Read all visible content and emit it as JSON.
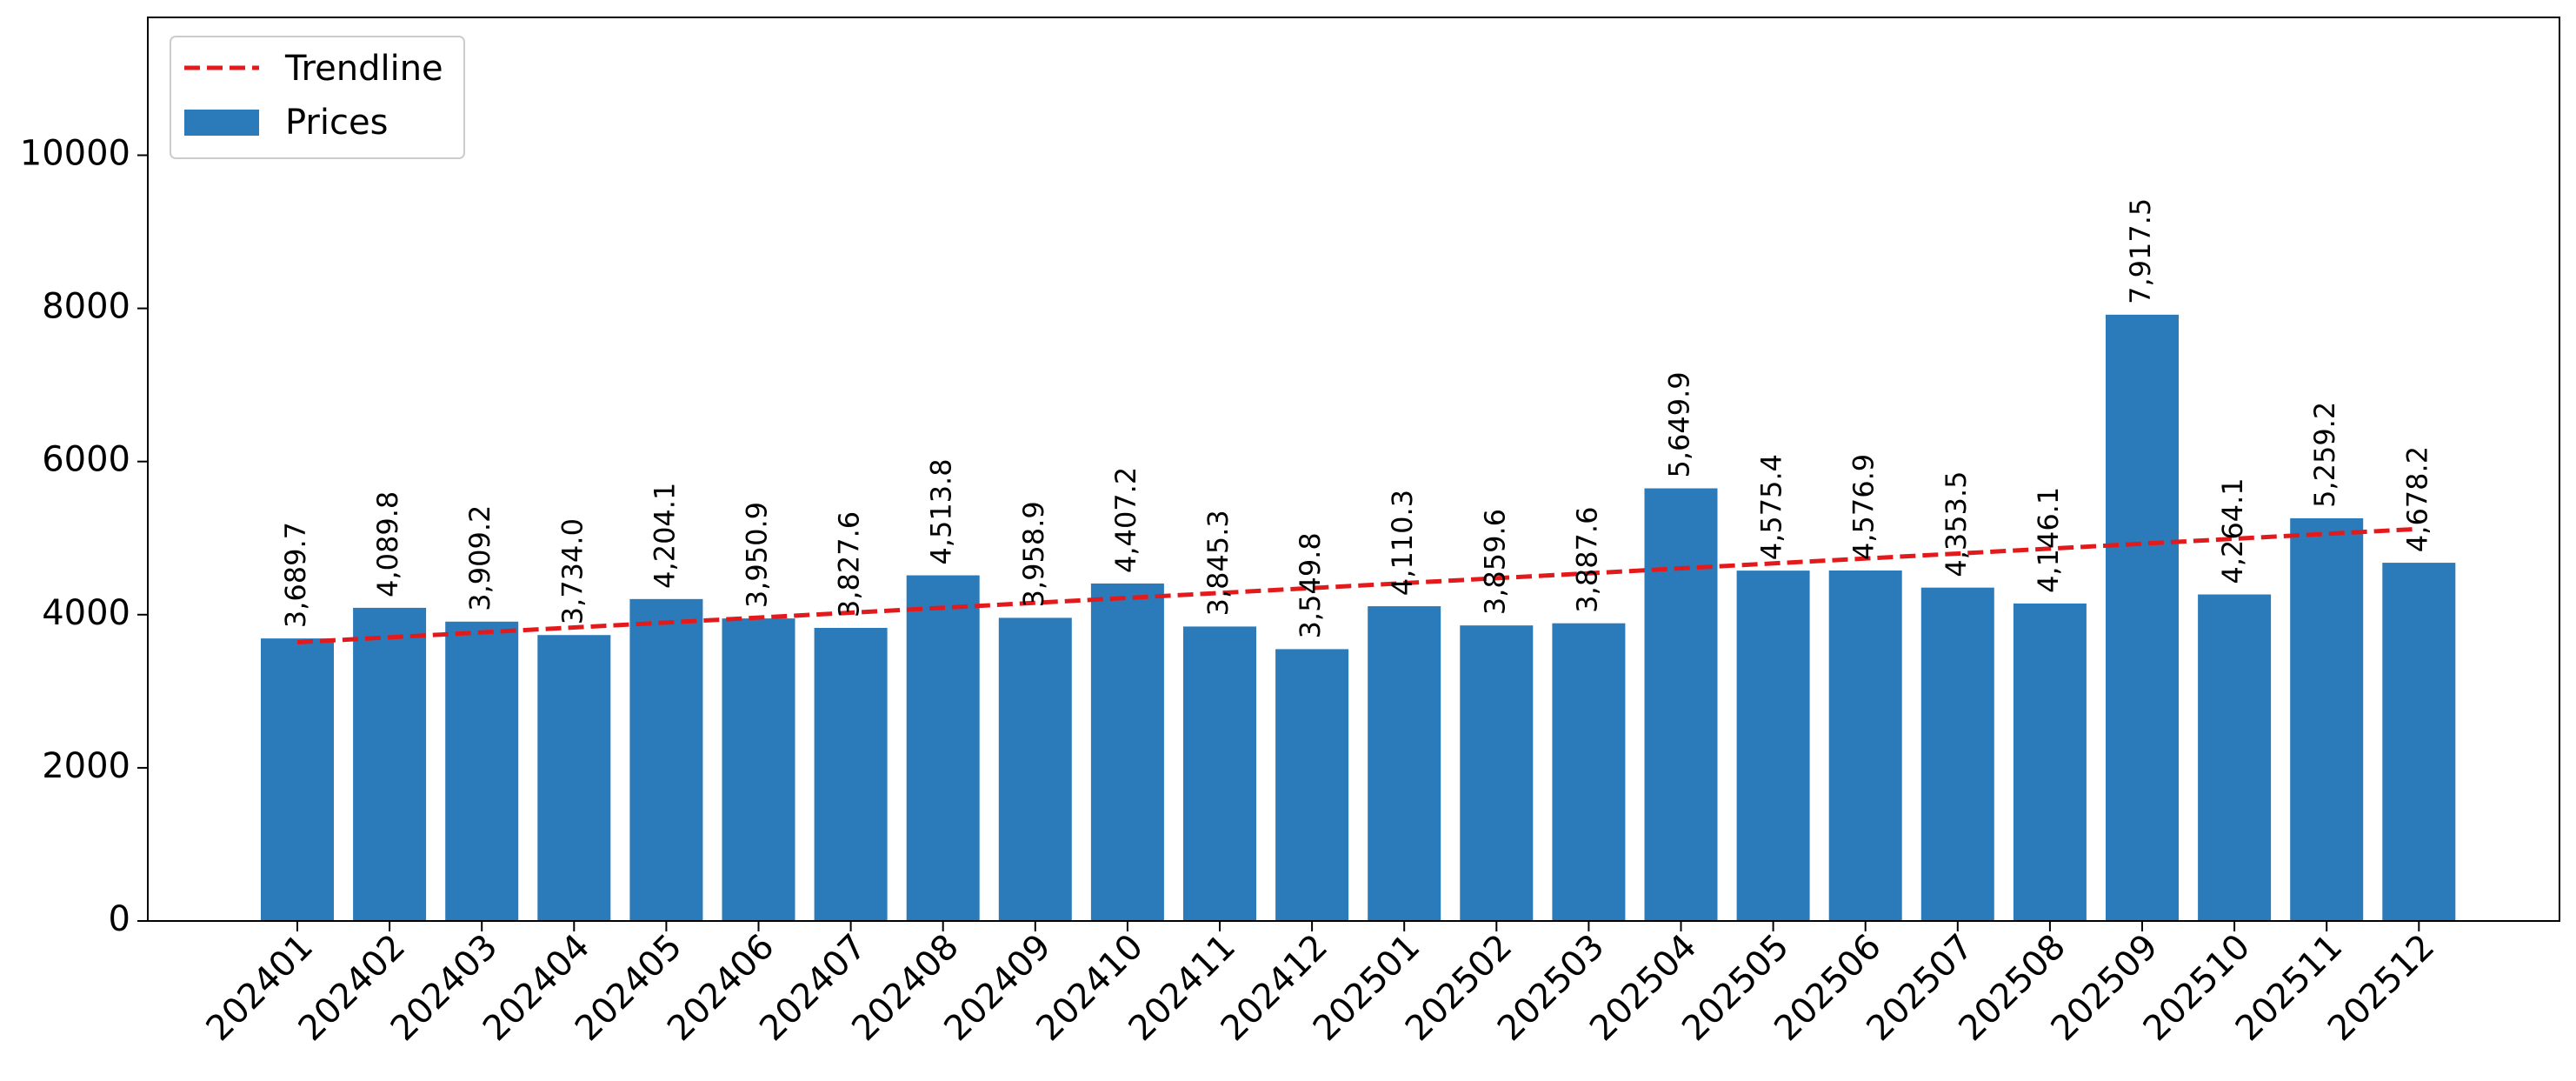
{
  "chart_data": {
    "type": "bar",
    "categories": [
      "202401",
      "202402",
      "202403",
      "202404",
      "202405",
      "202406",
      "202407",
      "202408",
      "202409",
      "202410",
      "202411",
      "202412",
      "202501",
      "202502",
      "202503",
      "202504",
      "202505",
      "202506",
      "202507",
      "202508",
      "202509",
      "202510",
      "202511",
      "202512"
    ],
    "series": [
      {
        "name": "Prices",
        "values": [
          3689.7,
          4089.8,
          3909.2,
          3734.0,
          4204.1,
          3950.9,
          3827.6,
          4513.8,
          3958.9,
          4407.2,
          3845.3,
          3549.8,
          4110.3,
          3859.6,
          3887.6,
          5649.9,
          4575.4,
          4576.9,
          4353.5,
          4146.1,
          7917.5,
          4264.1,
          5259.2,
          4678.2
        ],
        "data_labels": [
          "3,689.7",
          "4,089.8",
          "3,909.2",
          "3,734.0",
          "4,204.1",
          "3,950.9",
          "3,827.6",
          "4,513.8",
          "3,958.9",
          "4,407.2",
          "3,845.3",
          "3,549.8",
          "4,110.3",
          "3,859.6",
          "3,887.6",
          "5,649.9",
          "4,575.4",
          "4,576.9",
          "4,353.5",
          "4,146.1",
          "7,917.5",
          "4,264.1",
          "5,259.2",
          "4,678.2"
        ],
        "color": "#2b7bba"
      }
    ],
    "trendline": {
      "name": "Trendline",
      "start": 3640,
      "end": 5120,
      "color": "#e31a1c",
      "style": "dashed"
    },
    "ylim": [
      0,
      11800
    ],
    "yticks": [
      0,
      2000,
      4000,
      6000,
      8000,
      10000
    ],
    "ytick_labels": [
      "0",
      "2000",
      "4000",
      "6000",
      "8000",
      "10000"
    ],
    "title": "",
    "xlabel": "",
    "ylabel": "",
    "grid": false,
    "legend": {
      "placement": "top-left",
      "entries": [
        "Trendline",
        "Prices"
      ]
    }
  }
}
